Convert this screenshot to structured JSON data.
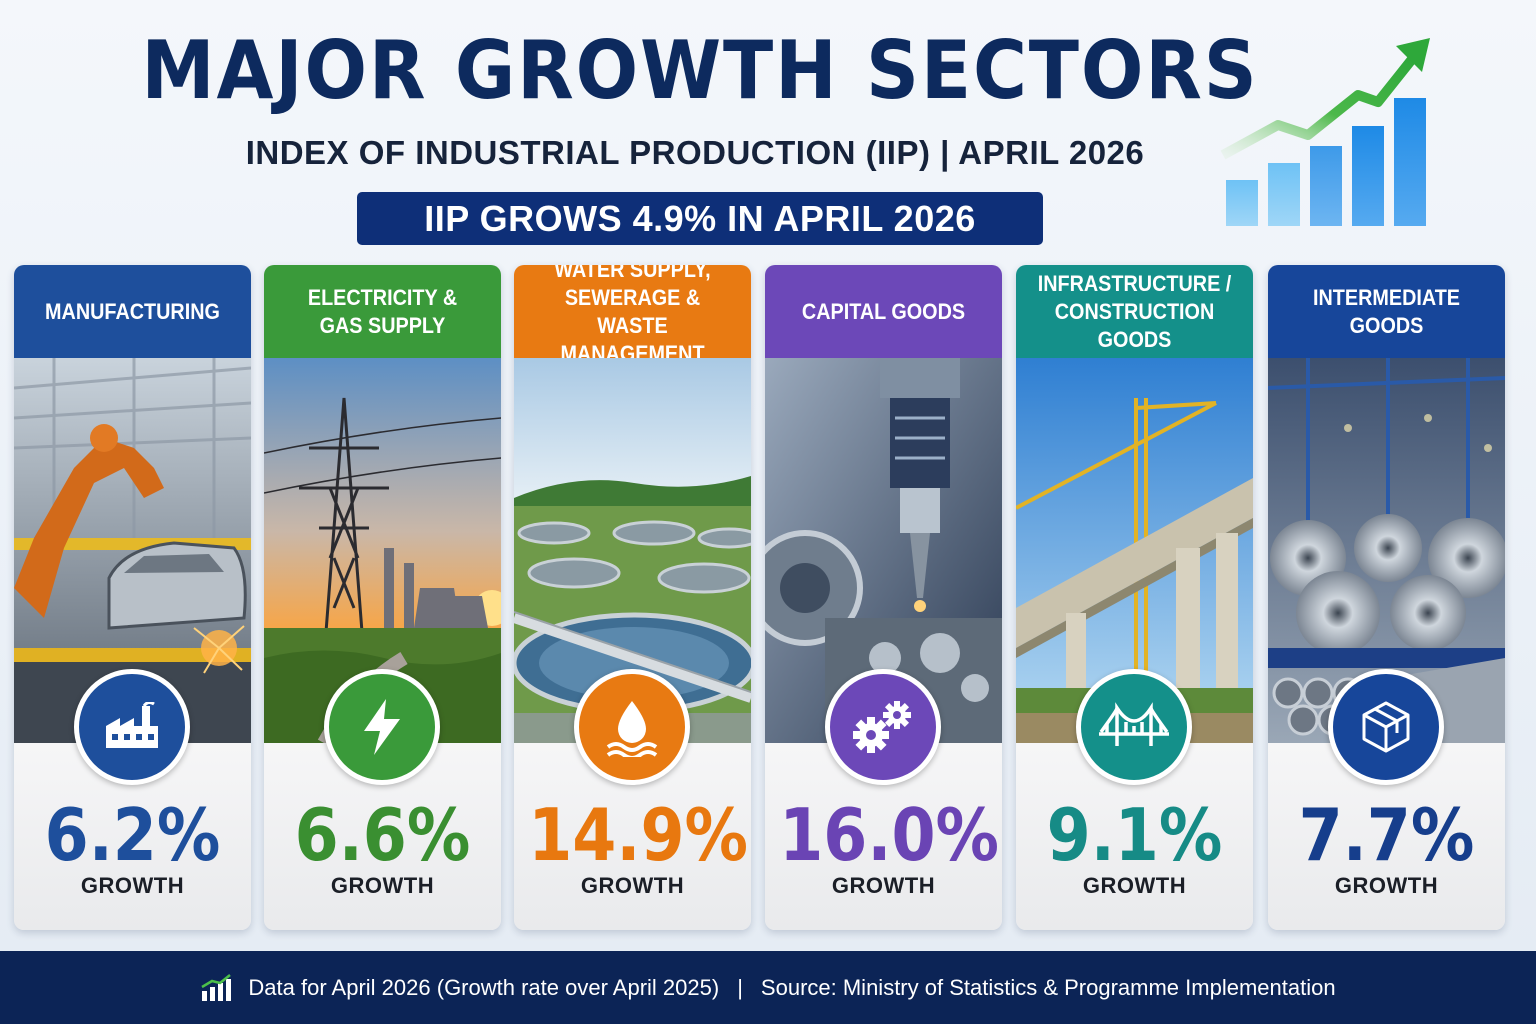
{
  "header": {
    "title": "MAJOR GROWTH SECTORS",
    "subtitle": "INDEX OF INDUSTRIAL PRODUCTION (IIP) | APRIL 2026",
    "headline": "IIP GROWS 4.9% IN APRIL 2026",
    "trend_icon": "rising-bar-chart-arrow-icon"
  },
  "sectors": [
    {
      "name": "MANUFACTURING",
      "growth": "6.2%",
      "growth_label": "GROWTH",
      "color": "#1e4f9c",
      "value_color": "#1e4f9c",
      "icon": "factory-icon",
      "image": "robotic-car-assembly-line"
    },
    {
      "name": "ELECTRICITY &\nGAS SUPPLY",
      "growth": "6.6%",
      "growth_label": "GROWTH",
      "color": "#3a9a3a",
      "value_color": "#3a8f31",
      "icon": "lightning-bolt-icon",
      "image": "power-pylon-at-sunset"
    },
    {
      "name": "WATER SUPPLY,\nSEWERAGE &\nWASTE MANAGEMENT",
      "growth": "14.9%",
      "growth_label": "GROWTH",
      "color": "#e87a12",
      "value_color": "#e8780f",
      "icon": "water-drop-icon",
      "image": "water-treatment-plant"
    },
    {
      "name": "CAPITAL GOODS",
      "growth": "16.0%",
      "growth_label": "GROWTH",
      "color": "#6c48b8",
      "value_color": "#6a44b4",
      "icon": "gears-icon",
      "image": "cnc-machine"
    },
    {
      "name": "INFRASTRUCTURE /\nCONSTRUCTION GOODS",
      "growth": "9.1%",
      "growth_label": "GROWTH",
      "color": "#14908a",
      "value_color": "#168b86",
      "icon": "bridge-icon",
      "image": "bridge-construction-crane"
    },
    {
      "name": "INTERMEDIATE GOODS",
      "growth": "7.7%",
      "growth_label": "GROWTH",
      "color": "#17469a",
      "value_color": "#163e8c",
      "icon": "cube-icon",
      "image": "steel-coils-warehouse"
    }
  ],
  "footer": {
    "note": "Data for April 2026 (Growth rate over April 2025)",
    "separator": "|",
    "source": "Source: Ministry of Statistics & Programme Implementation",
    "icon": "bar-chart-icon"
  }
}
